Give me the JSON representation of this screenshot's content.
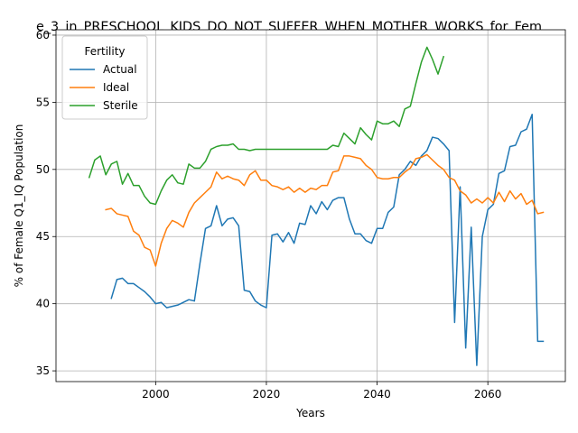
{
  "chart_data": {
    "type": "line",
    "title": "e_3_in_PRESCHOOL_KIDS_DO_NOT_SUFFER_WHEN_MOTHER_WORKS_for_Fem",
    "xlabel": "Years",
    "ylabel": "% of Female Q1_IQ Population",
    "xlim": [
      1982,
      2074
    ],
    "ylim": [
      34.2,
      60.4
    ],
    "x_ticks": [
      2000,
      2020,
      2040,
      2060
    ],
    "y_ticks": [
      35,
      40,
      45,
      50,
      55,
      60
    ],
    "grid": true,
    "legend": {
      "title": "Fertility",
      "placement": "upper-left"
    },
    "series": [
      {
        "name": "Actual",
        "color": "#1f77b4",
        "points": [
          [
            1992,
            40.4
          ],
          [
            1993,
            41.8
          ],
          [
            1994,
            41.9
          ],
          [
            1995,
            41.5
          ],
          [
            1996,
            41.5
          ],
          [
            1997,
            41.2
          ],
          [
            1998,
            40.9
          ],
          [
            1999,
            40.5
          ],
          [
            2000,
            40.0
          ],
          [
            2001,
            40.1
          ],
          [
            2002,
            39.7
          ],
          [
            2003,
            39.8
          ],
          [
            2004,
            39.9
          ],
          [
            2005,
            40.1
          ],
          [
            2006,
            40.3
          ],
          [
            2007,
            40.2
          ],
          [
            2008,
            43.0
          ],
          [
            2009,
            45.6
          ],
          [
            2010,
            45.8
          ],
          [
            2011,
            47.3
          ],
          [
            2012,
            45.8
          ],
          [
            2013,
            46.3
          ],
          [
            2014,
            46.4
          ],
          [
            2015,
            45.8
          ],
          [
            2016,
            41.0
          ],
          [
            2017,
            40.9
          ],
          [
            2018,
            40.2
          ],
          [
            2019,
            39.9
          ],
          [
            2020,
            39.7
          ],
          [
            2021,
            45.1
          ],
          [
            2022,
            45.2
          ],
          [
            2023,
            44.6
          ],
          [
            2024,
            45.3
          ],
          [
            2025,
            44.5
          ],
          [
            2026,
            46.0
          ],
          [
            2027,
            45.9
          ],
          [
            2028,
            47.3
          ],
          [
            2029,
            46.7
          ],
          [
            2030,
            47.6
          ],
          [
            2031,
            47.0
          ],
          [
            2032,
            47.7
          ],
          [
            2033,
            47.9
          ],
          [
            2034,
            47.9
          ],
          [
            2035,
            46.3
          ],
          [
            2036,
            45.2
          ],
          [
            2037,
            45.2
          ],
          [
            2038,
            44.7
          ],
          [
            2039,
            44.5
          ],
          [
            2040,
            45.6
          ],
          [
            2041,
            45.6
          ],
          [
            2042,
            46.8
          ],
          [
            2043,
            47.2
          ],
          [
            2044,
            49.6
          ],
          [
            2045,
            50.0
          ],
          [
            2046,
            50.6
          ],
          [
            2047,
            50.3
          ],
          [
            2048,
            51.0
          ],
          [
            2049,
            51.4
          ],
          [
            2050,
            52.4
          ],
          [
            2051,
            52.3
          ],
          [
            2052,
            51.9
          ],
          [
            2053,
            51.4
          ],
          [
            2054,
            38.6
          ],
          [
            2055,
            48.7
          ],
          [
            2056,
            36.7
          ],
          [
            2057,
            45.7
          ],
          [
            2058,
            35.4
          ],
          [
            2059,
            45.0
          ],
          [
            2060,
            47.0
          ],
          [
            2061,
            47.4
          ],
          [
            2062,
            49.7
          ],
          [
            2063,
            49.9
          ],
          [
            2064,
            51.7
          ],
          [
            2065,
            51.8
          ],
          [
            2066,
            52.8
          ],
          [
            2067,
            53.0
          ],
          [
            2068,
            54.1
          ],
          [
            2069,
            37.2
          ],
          [
            2070,
            37.2
          ]
        ]
      },
      {
        "name": "Ideal",
        "color": "#ff7f0e",
        "points": [
          [
            1991,
            47.0
          ],
          [
            1992,
            47.1
          ],
          [
            1993,
            46.7
          ],
          [
            1994,
            46.6
          ],
          [
            1995,
            46.5
          ],
          [
            1996,
            45.4
          ],
          [
            1997,
            45.1
          ],
          [
            1998,
            44.2
          ],
          [
            1999,
            44.0
          ],
          [
            2000,
            42.8
          ],
          [
            2001,
            44.5
          ],
          [
            2002,
            45.6
          ],
          [
            2003,
            46.2
          ],
          [
            2004,
            46.0
          ],
          [
            2005,
            45.7
          ],
          [
            2006,
            46.8
          ],
          [
            2007,
            47.5
          ],
          [
            2008,
            47.9
          ],
          [
            2009,
            48.3
          ],
          [
            2010,
            48.7
          ],
          [
            2011,
            49.8
          ],
          [
            2012,
            49.3
          ],
          [
            2013,
            49.5
          ],
          [
            2014,
            49.3
          ],
          [
            2015,
            49.2
          ],
          [
            2016,
            48.8
          ],
          [
            2017,
            49.6
          ],
          [
            2018,
            49.9
          ],
          [
            2019,
            49.2
          ],
          [
            2020,
            49.2
          ],
          [
            2021,
            48.8
          ],
          [
            2022,
            48.7
          ],
          [
            2023,
            48.5
          ],
          [
            2024,
            48.7
          ],
          [
            2025,
            48.3
          ],
          [
            2026,
            48.6
          ],
          [
            2027,
            48.3
          ],
          [
            2028,
            48.6
          ],
          [
            2029,
            48.5
          ],
          [
            2030,
            48.8
          ],
          [
            2031,
            48.8
          ],
          [
            2032,
            49.8
          ],
          [
            2033,
            49.9
          ],
          [
            2034,
            51.0
          ],
          [
            2035,
            51.0
          ],
          [
            2036,
            50.9
          ],
          [
            2037,
            50.8
          ],
          [
            2038,
            50.3
          ],
          [
            2039,
            50.0
          ],
          [
            2040,
            49.4
          ],
          [
            2041,
            49.3
          ],
          [
            2042,
            49.3
          ],
          [
            2043,
            49.4
          ],
          [
            2044,
            49.4
          ],
          [
            2045,
            49.8
          ],
          [
            2046,
            50.1
          ],
          [
            2047,
            50.8
          ],
          [
            2048,
            50.9
          ],
          [
            2049,
            51.1
          ],
          [
            2050,
            50.7
          ],
          [
            2051,
            50.3
          ],
          [
            2052,
            50.0
          ],
          [
            2053,
            49.4
          ],
          [
            2054,
            49.2
          ],
          [
            2055,
            48.4
          ],
          [
            2056,
            48.1
          ],
          [
            2057,
            47.5
          ],
          [
            2058,
            47.8
          ],
          [
            2059,
            47.5
          ],
          [
            2060,
            47.9
          ],
          [
            2061,
            47.5
          ],
          [
            2062,
            48.3
          ],
          [
            2063,
            47.6
          ],
          [
            2064,
            48.4
          ],
          [
            2065,
            47.8
          ],
          [
            2066,
            48.2
          ],
          [
            2067,
            47.4
          ],
          [
            2068,
            47.7
          ],
          [
            2069,
            46.7
          ],
          [
            2070,
            46.8
          ]
        ]
      },
      {
        "name": "Sterile",
        "color": "#2ca02c",
        "points": [
          [
            1988,
            49.4
          ],
          [
            1989,
            50.7
          ],
          [
            1990,
            51.0
          ],
          [
            1991,
            49.6
          ],
          [
            1992,
            50.4
          ],
          [
            1993,
            50.6
          ],
          [
            1994,
            48.9
          ],
          [
            1995,
            49.7
          ],
          [
            1996,
            48.8
          ],
          [
            1997,
            48.8
          ],
          [
            1998,
            48.0
          ],
          [
            1999,
            47.5
          ],
          [
            2000,
            47.4
          ],
          [
            2001,
            48.4
          ],
          [
            2002,
            49.2
          ],
          [
            2003,
            49.6
          ],
          [
            2004,
            49.0
          ],
          [
            2005,
            48.9
          ],
          [
            2006,
            50.4
          ],
          [
            2007,
            50.1
          ],
          [
            2008,
            50.1
          ],
          [
            2009,
            50.6
          ],
          [
            2010,
            51.5
          ],
          [
            2011,
            51.7
          ],
          [
            2012,
            51.8
          ],
          [
            2013,
            51.8
          ],
          [
            2014,
            51.9
          ],
          [
            2015,
            51.5
          ],
          [
            2016,
            51.5
          ],
          [
            2017,
            51.4
          ],
          [
            2018,
            51.5
          ],
          [
            2019,
            51.5
          ],
          [
            2020,
            51.5
          ],
          [
            2021,
            51.5
          ],
          [
            2022,
            51.5
          ],
          [
            2023,
            51.5
          ],
          [
            2024,
            51.5
          ],
          [
            2025,
            51.5
          ],
          [
            2026,
            51.5
          ],
          [
            2027,
            51.5
          ],
          [
            2028,
            51.5
          ],
          [
            2029,
            51.5
          ],
          [
            2030,
            51.5
          ],
          [
            2031,
            51.5
          ],
          [
            2032,
            51.8
          ],
          [
            2033,
            51.7
          ],
          [
            2034,
            52.7
          ],
          [
            2035,
            52.3
          ],
          [
            2036,
            51.9
          ],
          [
            2037,
            53.1
          ],
          [
            2038,
            52.6
          ],
          [
            2039,
            52.2
          ],
          [
            2040,
            53.6
          ],
          [
            2041,
            53.4
          ],
          [
            2042,
            53.4
          ],
          [
            2043,
            53.6
          ],
          [
            2044,
            53.2
          ],
          [
            2045,
            54.5
          ],
          [
            2046,
            54.7
          ],
          [
            2047,
            56.4
          ],
          [
            2048,
            58.0
          ],
          [
            2049,
            59.1
          ],
          [
            2050,
            58.2
          ],
          [
            2051,
            57.1
          ],
          [
            2052,
            58.4
          ]
        ]
      }
    ]
  }
}
